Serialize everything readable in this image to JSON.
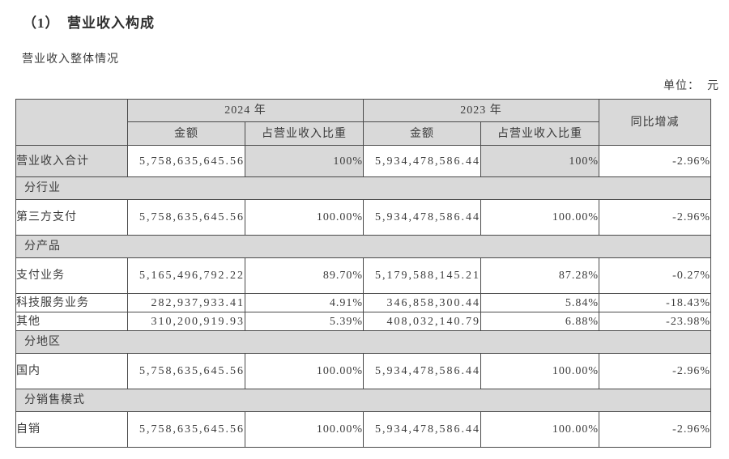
{
  "page": {
    "title": "（1）　营业收入构成",
    "subtitle": "营业收入整体情况",
    "unit_note": "单位：  元"
  },
  "colors": {
    "shaded_cell_bg": "#d9d9d9",
    "table_border": "#4a4a4a",
    "text": "#3b3b3b",
    "page_bg": "#ffffff"
  },
  "table": {
    "header": {
      "year_2024": "2024 年",
      "year_2023": "2023 年",
      "amount": "金额",
      "share": "占营业收入比重",
      "yoy": "同比增减"
    },
    "rows": [
      {
        "type": "data",
        "label": "营业收入合计",
        "amt2024": "5,758,635,645.56",
        "pct2024": "100%",
        "amt2023": "5,934,478,586.44",
        "pct2023": "100%",
        "yoy": "-2.96%"
      },
      {
        "type": "section",
        "label": "分行业"
      },
      {
        "type": "data",
        "label": "第三方支付",
        "amt2024": "5,758,635,645.56",
        "pct2024": "100.00%",
        "amt2023": "5,934,478,586.44",
        "pct2023": "100.00%",
        "yoy": "-2.96%"
      },
      {
        "type": "section",
        "label": "分产品"
      },
      {
        "type": "data",
        "label": "支付业务",
        "amt2024": "5,165,496,792.22",
        "pct2024": "89.70%",
        "amt2023": "5,179,588,145.21",
        "pct2023": "87.28%",
        "yoy": "-0.27%"
      },
      {
        "type": "data",
        "label": "科技服务业务",
        "amt2024": "282,937,933.41",
        "pct2024": "4.91%",
        "amt2023": "346,858,300.44",
        "pct2023": "5.84%",
        "yoy": "-18.43%"
      },
      {
        "type": "data",
        "label": "其他",
        "amt2024": "310,200,919.93",
        "pct2024": "5.39%",
        "amt2023": "408,032,140.79",
        "pct2023": "6.88%",
        "yoy": "-23.98%"
      },
      {
        "type": "section",
        "label": "分地区"
      },
      {
        "type": "data",
        "label": "国内",
        "amt2024": "5,758,635,645.56",
        "pct2024": "100.00%",
        "amt2023": "5,934,478,586.44",
        "pct2023": "100.00%",
        "yoy": "-2.96%"
      },
      {
        "type": "section",
        "label": "分销售模式"
      },
      {
        "type": "data",
        "label": "自销",
        "amt2024": "5,758,635,645.56",
        "pct2024": "100.00%",
        "amt2023": "5,934,478,586.44",
        "pct2023": "100.00%",
        "yoy": "-2.96%"
      }
    ]
  }
}
